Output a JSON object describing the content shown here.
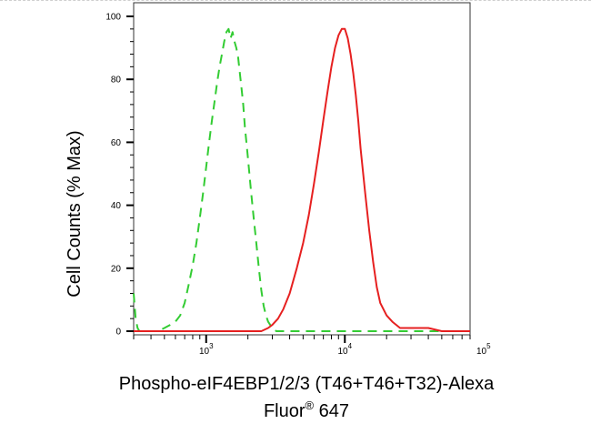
{
  "chart_data": {
    "type": "line",
    "title": "",
    "xlabel_line1": "Phospho-eIF4EBP1/2/3 (T46+T46+T32)-Alexa",
    "xlabel_line2_prefix": "Fluor",
    "xlabel_line2_mark": "®",
    "xlabel_line2_suffix": " 647",
    "ylabel": "Cell Counts (% Max)",
    "xscale": "log",
    "xlim": [
      300,
      80000
    ],
    "ylim": [
      0,
      100
    ],
    "grid": false,
    "legend": "none",
    "y_ticks": [
      {
        "value": 0,
        "label": "0"
      },
      {
        "value": 20,
        "label": "20"
      },
      {
        "value": 40,
        "label": "40"
      },
      {
        "value": 60,
        "label": "60"
      },
      {
        "value": 80,
        "label": "80"
      },
      {
        "value": 100,
        "label": "100"
      }
    ],
    "x_ticks": [
      {
        "value": 1000,
        "base": "10",
        "exp": "3"
      },
      {
        "value": 10000,
        "base": "10",
        "exp": "4"
      },
      {
        "value": 100000,
        "base": "10",
        "exp": "5"
      }
    ],
    "series": [
      {
        "color": "#33cc33",
        "dash": "10,7",
        "x": [
          300,
          310,
          320,
          330,
          345,
          360,
          380,
          400,
          450,
          500,
          550,
          600,
          650,
          700,
          750,
          800,
          850,
          900,
          950,
          1000,
          1050,
          1100,
          1150,
          1200,
          1250,
          1300,
          1350,
          1400,
          1450,
          1500,
          1550,
          1600,
          1650,
          1700,
          1750,
          1800,
          1850,
          1900,
          2000,
          2100,
          2200,
          2300,
          2400,
          2500,
          2600,
          2700,
          2800,
          3000,
          3200,
          3500,
          4000,
          5000,
          7000,
          10000,
          20000,
          40000,
          80000
        ],
        "y": [
          12,
          4,
          1,
          0,
          0,
          0,
          0,
          0,
          0,
          1,
          2,
          3,
          5,
          9,
          15,
          21,
          28,
          36,
          44,
          52,
          60,
          67,
          73,
          79,
          84,
          88,
          92,
          95,
          96,
          93,
          95,
          92,
          90,
          87,
          82,
          77,
          72,
          65,
          55,
          45,
          36,
          28,
          20,
          13,
          8,
          5,
          3,
          1,
          0,
          0,
          0,
          0,
          0,
          0,
          0,
          0,
          0
        ]
      },
      {
        "color": "#e62020",
        "dash": "",
        "x": [
          300,
          1500,
          2500,
          2800,
          3000,
          3300,
          3600,
          4000,
          4500,
          5000,
          5500,
          6000,
          6500,
          7000,
          7500,
          8000,
          8500,
          9000,
          9500,
          10000,
          10500,
          11000,
          11500,
          12000,
          12500,
          13000,
          14000,
          15000,
          16000,
          17000,
          18000,
          20000,
          22000,
          25000,
          30000,
          35000,
          40000,
          50000,
          60000,
          80000
        ],
        "y": [
          0,
          0,
          0,
          1,
          2,
          4,
          7,
          12,
          20,
          28,
          37,
          47,
          57,
          67,
          76,
          84,
          90,
          94,
          96,
          96,
          93,
          88,
          82,
          75,
          67,
          58,
          44,
          32,
          22,
          14,
          9,
          5,
          3,
          1,
          1,
          1,
          1,
          0,
          0,
          0
        ]
      }
    ]
  }
}
